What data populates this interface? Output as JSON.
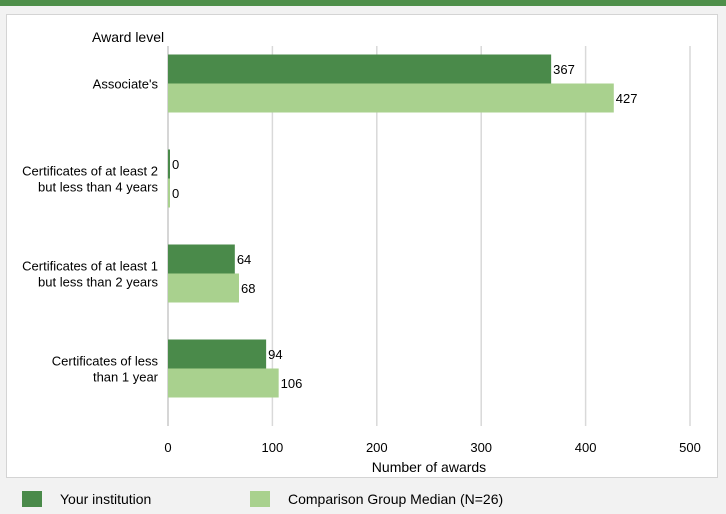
{
  "chart_data": {
    "type": "bar",
    "orientation": "horizontal",
    "title": "",
    "ylabel": "Award level",
    "xlabel": "Number of awards",
    "categories": [
      [
        "Associate's"
      ],
      [
        "Certificates of at least 2",
        "but less than 4 years"
      ],
      [
        "Certificates of at least 1",
        "but  less than 2 years"
      ],
      [
        "Certificates of less",
        "than 1 year"
      ]
    ],
    "series": [
      {
        "name": "Your institution",
        "color": "#4a8a4a",
        "values": [
          367,
          0,
          64,
          94
        ]
      },
      {
        "name": "Comparison Group Median (N=26)",
        "color": "#a9d18e",
        "values": [
          427,
          0,
          68,
          106
        ]
      }
    ],
    "xlim": [
      0,
      500
    ],
    "xticks": [
      0,
      100,
      200,
      300,
      400,
      500
    ],
    "grid": true,
    "legend_position": "bottom"
  },
  "colors": {
    "top_bar": "#4f8f4a",
    "grid": "#d9d9d9",
    "panel_border": "#d4d4d4",
    "frame_bg": "#f2f2f2"
  }
}
